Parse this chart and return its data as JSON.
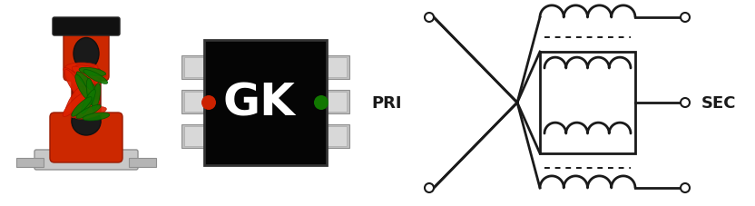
{
  "bg_color": "#ffffff",
  "schematic": {
    "pri_label": "PRI",
    "sec_label": "SEC",
    "line_color": "#1a1a1a",
    "lw": 2.0,
    "lw_thin": 1.5
  }
}
